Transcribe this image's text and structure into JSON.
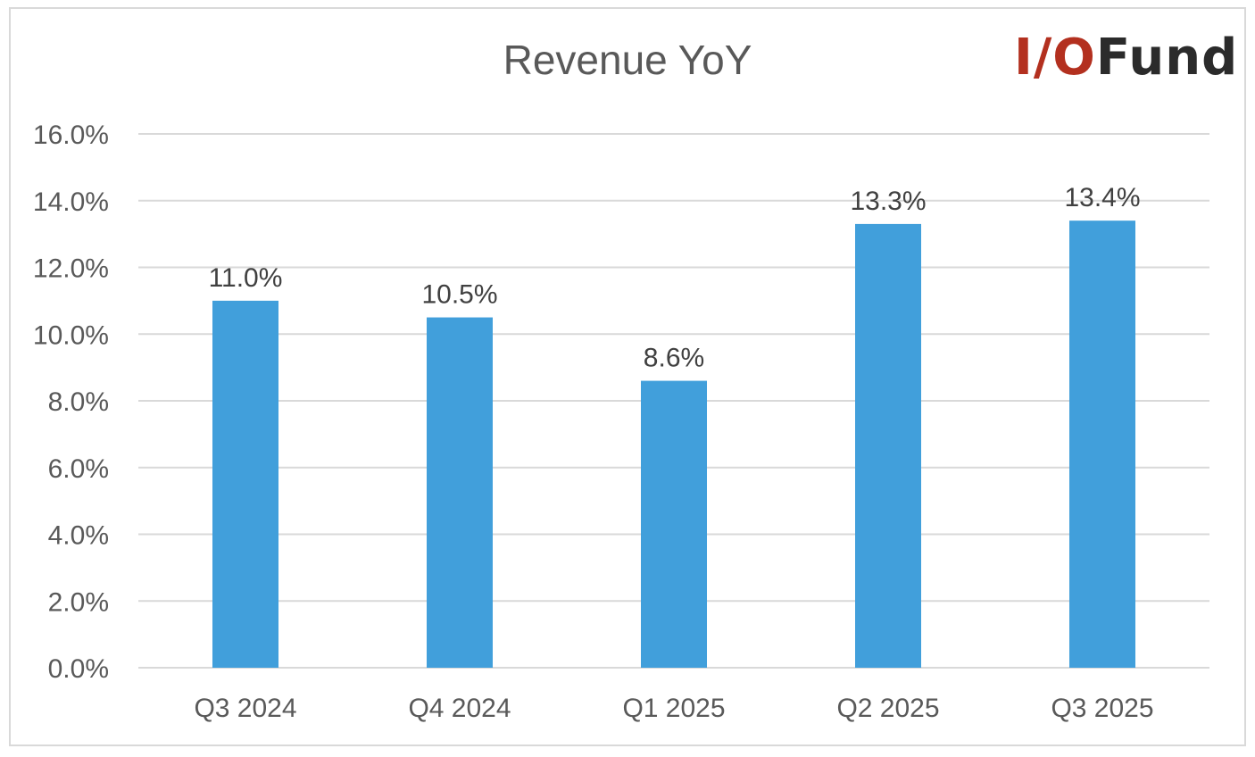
{
  "chart_data": {
    "type": "bar",
    "title": "Revenue YoY",
    "categories": [
      "Q3 2024",
      "Q4 2024",
      "Q1 2025",
      "Q2 2025",
      "Q3 2025"
    ],
    "values": [
      11.0,
      10.5,
      8.6,
      13.3,
      13.4
    ],
    "data_labels": [
      "11.0%",
      "10.5%",
      "8.6%",
      "13.3%",
      "13.4%"
    ],
    "yticks": [
      "0.0%",
      "2.0%",
      "4.0%",
      "6.0%",
      "8.0%",
      "10.0%",
      "12.0%",
      "14.0%",
      "16.0%"
    ],
    "ylim": [
      0,
      16
    ],
    "grid": true,
    "legend": "none",
    "xlabel": "",
    "ylabel": "",
    "bar_color": "#419fdb"
  },
  "logo": {
    "accent_text": "I/O",
    "rest_text": "Fund",
    "accent_color": "#b3301f",
    "rest_color": "#2b2b2b"
  }
}
